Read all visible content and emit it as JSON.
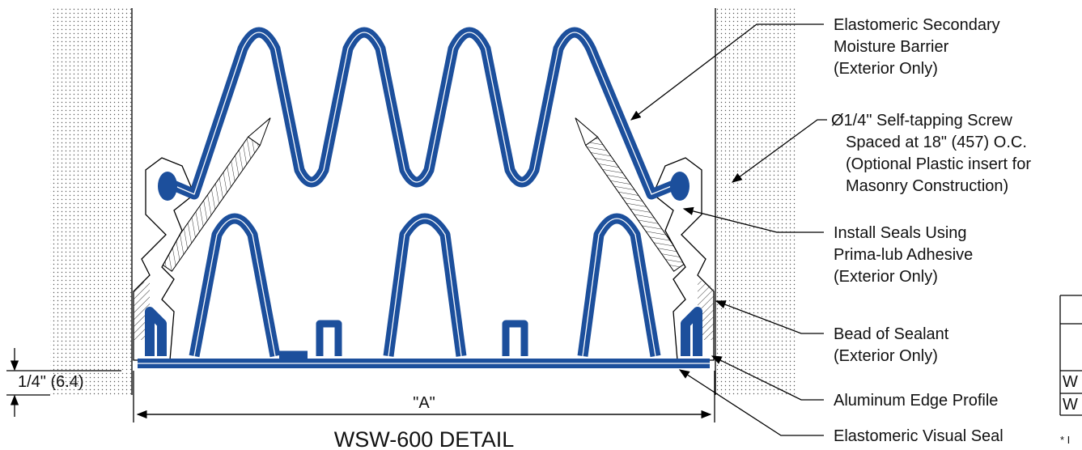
{
  "title": "WSW-600 DETAIL",
  "dimensions": {
    "width": "\"A\"",
    "offset": "1/4\" (6.4)"
  },
  "callouts": [
    {
      "lines": [
        "Elastomeric Secondary",
        "Moisture Barrier",
        "(Exterior Only)"
      ]
    },
    {
      "lines": [
        "Ø1/4\" Self-tapping Screw",
        "Spaced at 18\" (457) O.C.",
        "(Optional Plastic insert for",
        "Masonry Construction)"
      ]
    },
    {
      "lines": [
        "Install Seals Using",
        "Prima-lub Adhesive",
        "(Exterior Only)"
      ]
    },
    {
      "lines": [
        "Bead of Sealant",
        "(Exterior Only)"
      ]
    },
    {
      "lines": [
        "Aluminum Edge Profile"
      ]
    },
    {
      "lines": [
        "Elastomeric Visual Seal"
      ]
    }
  ],
  "table": {
    "rows": [
      "W",
      "W"
    ],
    "note": "* I"
  }
}
